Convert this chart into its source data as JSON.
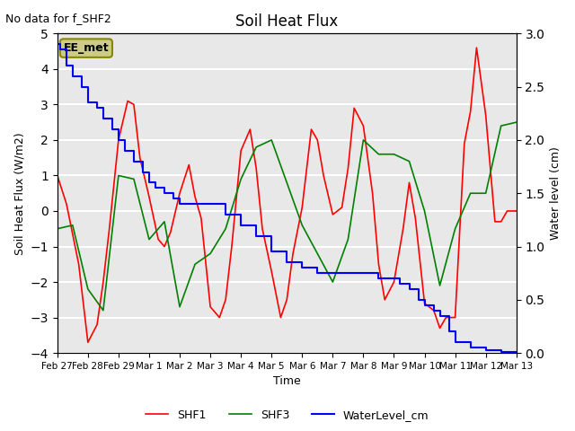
{
  "title": "Soil Heat Flux",
  "note": "No data for f_SHF2",
  "ylabel_left": "Soil Heat Flux (W/m2)",
  "ylabel_right": "Water level (cm)",
  "xlabel": "Time",
  "ylim_left": [
    -4.0,
    5.0
  ],
  "ylim_right": [
    0.0,
    3.0
  ],
  "background_color": "#ffffff",
  "plot_bg_color": "#e8e8e8",
  "grid_color": "#ffffff",
  "annotation_text": "EE_met",
  "annotation_bg": "#cccc88",
  "annotation_border": "#888800",
  "legend_entries": [
    "SHF1",
    "SHF3",
    "WaterLevel_cm"
  ],
  "line_colors": [
    "red",
    "green",
    "blue"
  ],
  "xtick_labels": [
    "Feb 27",
    "Feb 28",
    "Feb 29",
    "Mar 1",
    "Mar 2",
    "Mar 3",
    "Mar 4",
    "Mar 5",
    "Mar 6",
    "Mar 7",
    "Mar 8",
    "Mar 9",
    "Mar 10",
    "Mar 11",
    "Mar 12",
    "Mar 13"
  ],
  "shf1_x": [
    0,
    0.3,
    0.7,
    1.0,
    1.3,
    1.5,
    1.7,
    2.0,
    2.3,
    2.5,
    2.7,
    3.0,
    3.3,
    3.5,
    3.7,
    4.0,
    4.3,
    4.5,
    4.7,
    5.0,
    5.3,
    5.5,
    5.7,
    6.0,
    6.3,
    6.5,
    6.7,
    7.0,
    7.3,
    7.5,
    7.7,
    8.0,
    8.3,
    8.5,
    8.7,
    9.0,
    9.3,
    9.5,
    9.7,
    10.0,
    10.3,
    10.5,
    10.7,
    11.0,
    11.3,
    11.5,
    11.7,
    12.0,
    12.3,
    12.5,
    12.7,
    13.0,
    13.3,
    13.5,
    13.7,
    14.0,
    14.3,
    14.5,
    14.7,
    15.0
  ],
  "shf1_y": [
    1.0,
    0.2,
    -1.5,
    -3.7,
    -3.2,
    -2.0,
    -0.5,
    2.0,
    3.1,
    3.0,
    1.5,
    0.4,
    -0.8,
    -1.0,
    -0.6,
    0.5,
    1.3,
    0.4,
    -0.2,
    -2.7,
    -3.0,
    -2.5,
    -1.0,
    1.7,
    2.3,
    1.2,
    -0.5,
    -1.7,
    -3.0,
    -2.5,
    -1.2,
    0.1,
    2.3,
    2.0,
    1.0,
    -0.1,
    0.1,
    1.2,
    2.9,
    2.4,
    0.5,
    -1.5,
    -2.5,
    -2.0,
    -0.5,
    0.8,
    -0.2,
    -2.6,
    -2.8,
    -3.3,
    -3.0,
    -3.0,
    1.9,
    2.8,
    4.6,
    2.7,
    -0.3,
    -0.3,
    0.0,
    0.0
  ],
  "shf3_x": [
    0,
    0.5,
    1.0,
    1.5,
    2.0,
    2.5,
    3.0,
    3.5,
    4.0,
    4.5,
    5.0,
    5.5,
    6.0,
    6.5,
    7.0,
    7.5,
    8.0,
    8.5,
    9.0,
    9.5,
    10.0,
    10.5,
    11.0,
    11.5,
    12.0,
    12.5,
    13.0,
    13.5,
    14.0,
    14.5,
    15.0
  ],
  "shf3_y": [
    -0.5,
    -0.4,
    -2.2,
    -2.8,
    1.0,
    0.9,
    -0.8,
    -0.3,
    -2.7,
    -1.5,
    -1.2,
    -0.5,
    0.9,
    1.8,
    2.0,
    0.8,
    -0.4,
    -1.2,
    -2.0,
    -0.8,
    2.0,
    1.6,
    1.6,
    1.4,
    0.0,
    -2.1,
    -0.5,
    0.5,
    0.5,
    2.4,
    2.5
  ],
  "wl_x": [
    0,
    0.1,
    0.3,
    0.5,
    0.8,
    1.0,
    1.3,
    1.5,
    1.8,
    2.0,
    2.2,
    2.5,
    2.8,
    3.0,
    3.2,
    3.5,
    3.8,
    4.0,
    4.5,
    5.0,
    5.5,
    6.0,
    6.5,
    7.0,
    7.5,
    8.0,
    8.5,
    9.0,
    9.5,
    10.0,
    10.5,
    11.0,
    11.2,
    11.5,
    11.8,
    12.0,
    12.3,
    12.5,
    12.8,
    13.0,
    13.5,
    14.0,
    14.5,
    15.0
  ],
  "wl_y": [
    2.9,
    2.85,
    2.7,
    2.6,
    2.5,
    2.35,
    2.3,
    2.2,
    2.1,
    2.0,
    1.9,
    1.8,
    1.7,
    1.6,
    1.55,
    1.5,
    1.45,
    1.4,
    1.4,
    1.4,
    1.3,
    1.2,
    1.1,
    0.95,
    0.85,
    0.8,
    0.75,
    0.75,
    0.75,
    0.75,
    0.7,
    0.7,
    0.65,
    0.6,
    0.5,
    0.45,
    0.4,
    0.35,
    0.2,
    0.1,
    0.05,
    0.03,
    0.01,
    0.0
  ],
  "xmin": 0,
  "xmax": 15,
  "xtick_positions": [
    0,
    1,
    2,
    3,
    4,
    5,
    6,
    7,
    8,
    9,
    10,
    11,
    12,
    13,
    14,
    15
  ]
}
